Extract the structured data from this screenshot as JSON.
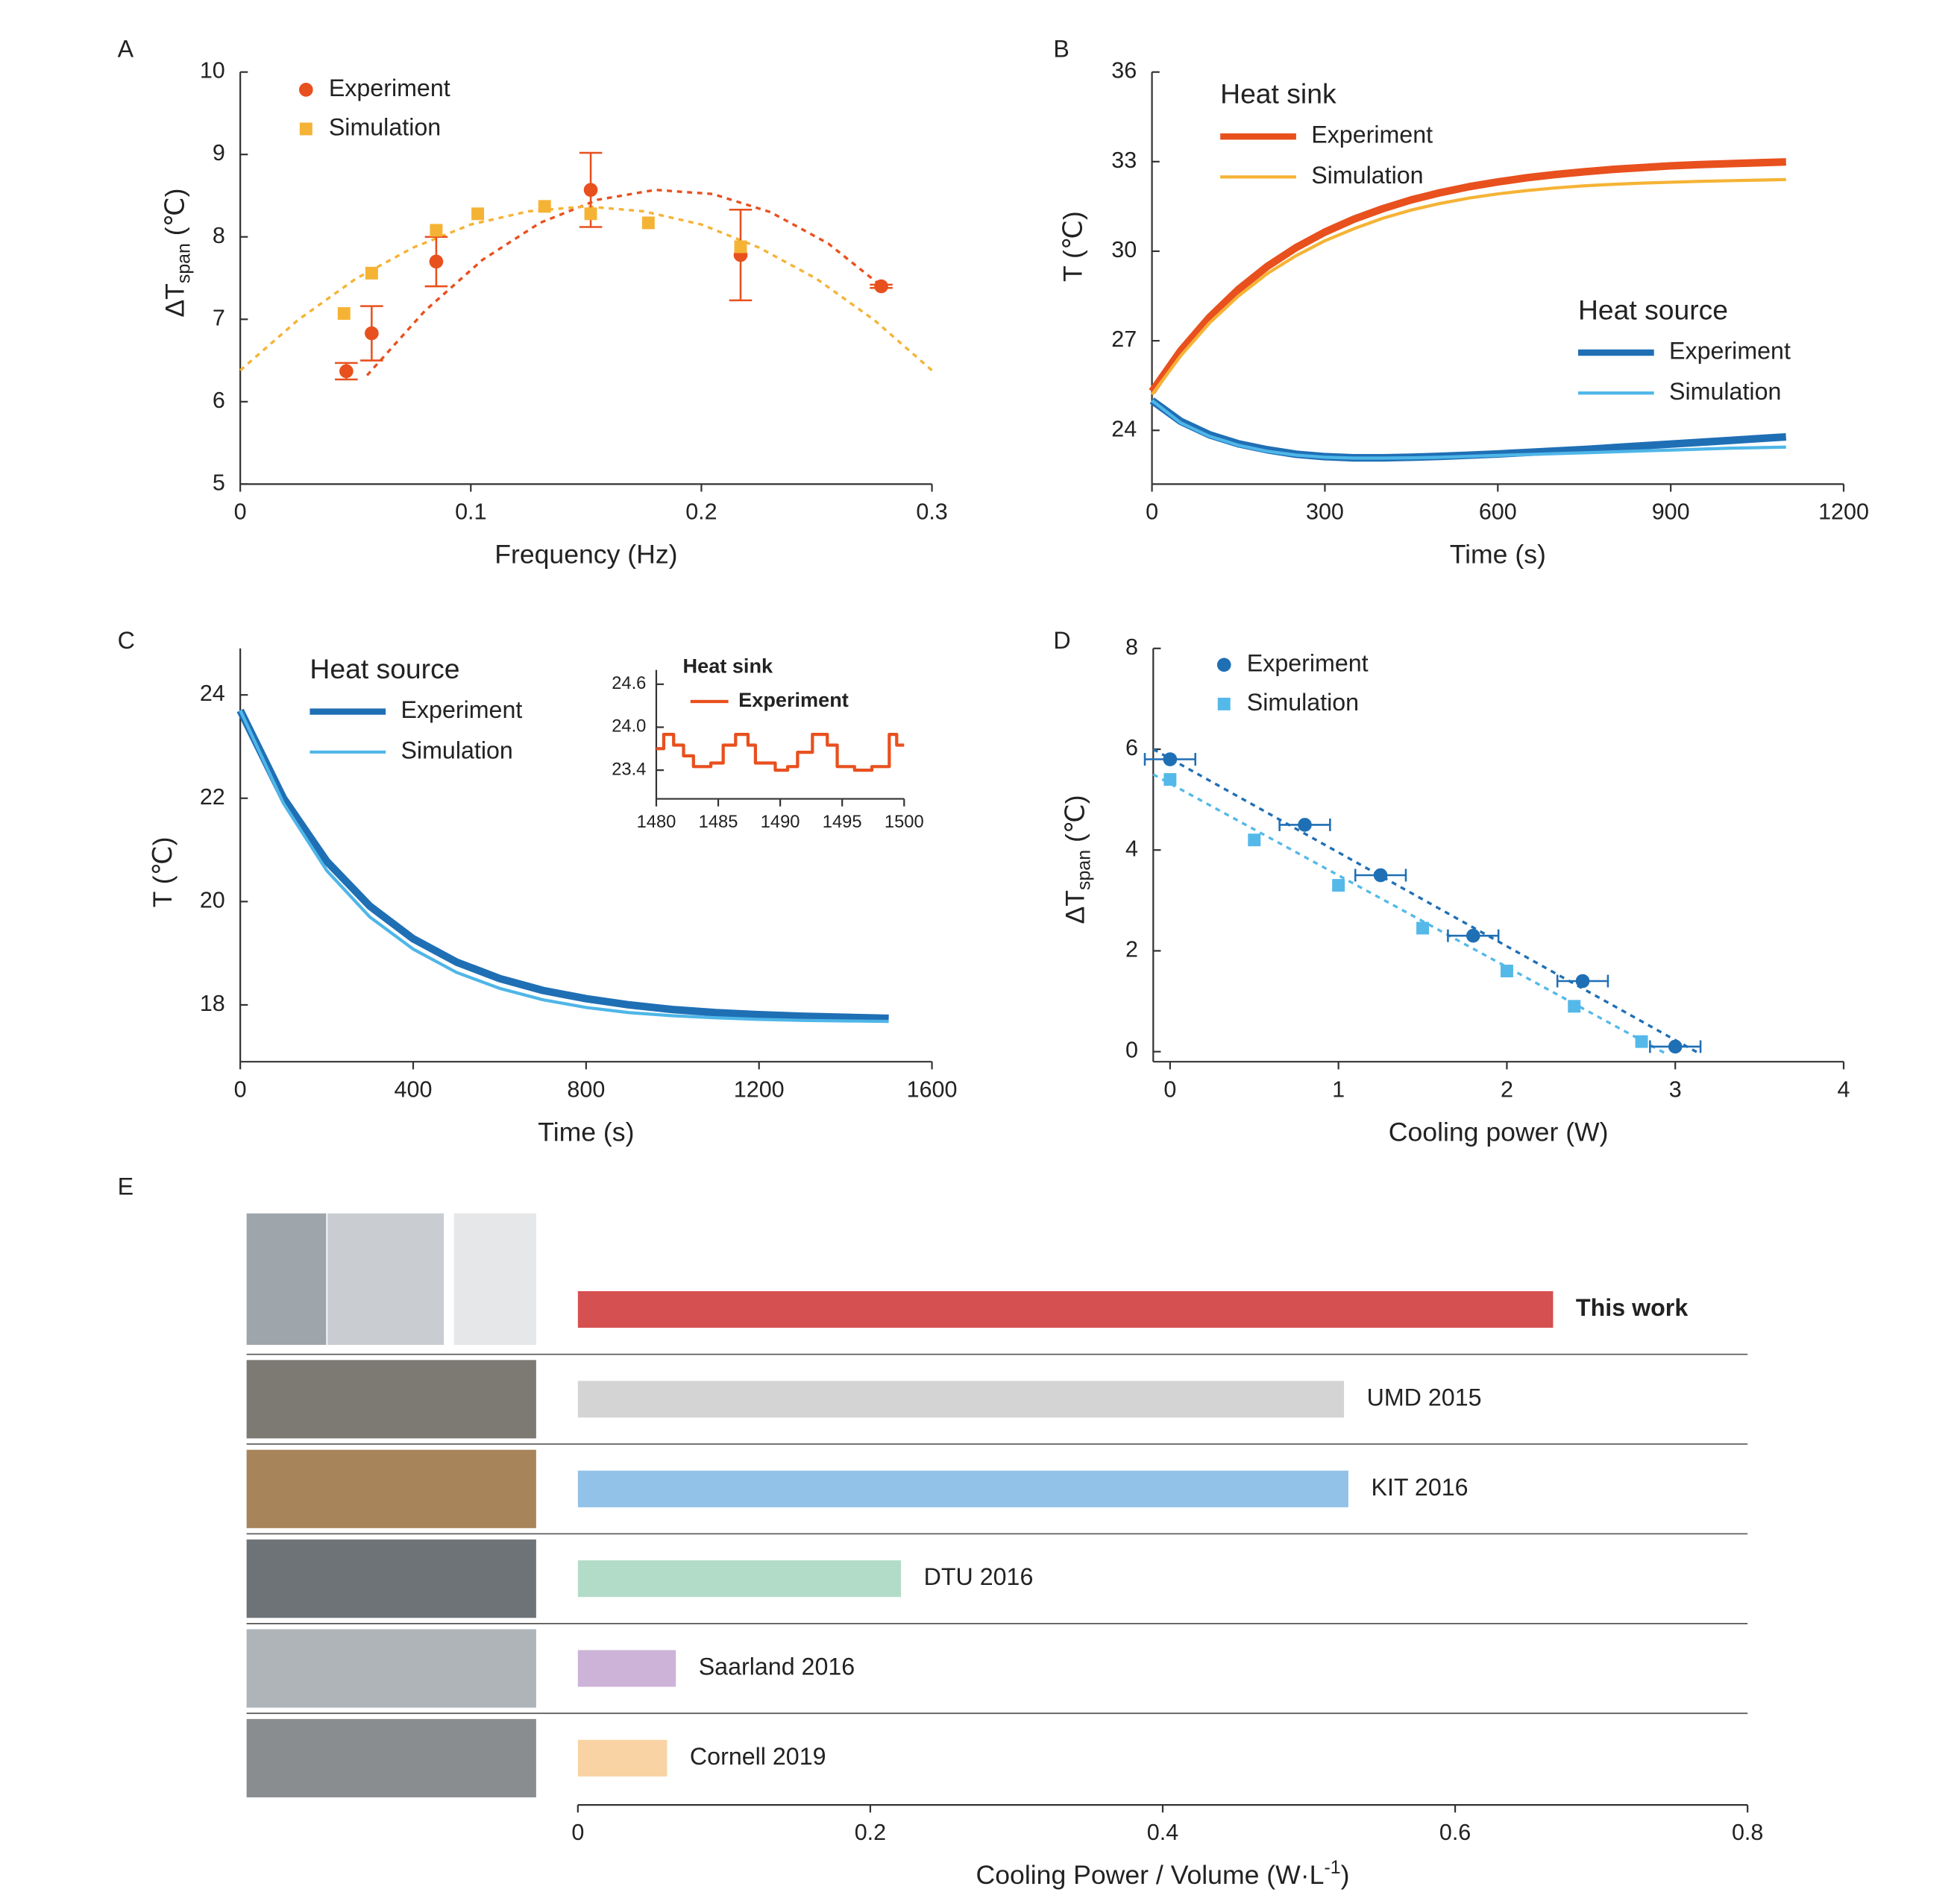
{
  "chart_data": [
    {
      "type": "scatter",
      "panel": "A",
      "xlabel": "Frequency (Hz)",
      "ylabel": [
        "ΔT",
        "span",
        " (℃)"
      ],
      "xlim": [
        0,
        0.3
      ],
      "xticks": [
        0,
        0.1,
        0.2,
        0.3
      ],
      "ylim": [
        5,
        10
      ],
      "yticks": [
        5,
        6,
        7,
        8,
        9,
        10
      ],
      "series": [
        {
          "name": "Experiment",
          "color": "#e8501e",
          "marker": "circle",
          "x": [
            0.046,
            0.057,
            0.085,
            0.152,
            0.217,
            0.278
          ],
          "values": [
            6.37,
            6.83,
            7.7,
            8.57,
            7.78,
            7.4
          ],
          "errors": [
            0.1,
            0.33,
            0.3,
            0.45,
            0.55,
            0.02
          ]
        },
        {
          "name": "Simulation",
          "color": "#f5b335",
          "marker": "square",
          "x": [
            0.045,
            0.057,
            0.085,
            0.103,
            0.132,
            0.152,
            0.177,
            0.217
          ],
          "values": [
            7.07,
            7.56,
            8.08,
            8.28,
            8.37,
            8.28,
            8.17,
            7.88
          ]
        }
      ],
      "fits": [
        {
          "color": "#e8501e",
          "x": [
            0.055,
            0.08,
            0.105,
            0.13,
            0.155,
            0.18,
            0.205,
            0.23,
            0.255,
            0.28
          ],
          "values": [
            6.32,
            7.1,
            7.72,
            8.17,
            8.45,
            8.57,
            8.52,
            8.3,
            7.92,
            7.36
          ]
        },
        {
          "color": "#f5b335",
          "x": [
            0,
            0.025,
            0.05,
            0.075,
            0.1,
            0.125,
            0.15,
            0.175,
            0.2,
            0.225,
            0.25,
            0.275,
            0.3
          ],
          "values": [
            6.38,
            6.99,
            7.49,
            7.87,
            8.15,
            8.31,
            8.37,
            8.31,
            8.15,
            7.87,
            7.49,
            6.99,
            6.38
          ]
        }
      ]
    },
    {
      "type": "line",
      "panel": "B",
      "xlabel": "Time (s)",
      "ylabel": "T (℃)",
      "xlim": [
        0,
        1200
      ],
      "xticks": [
        0,
        300,
        600,
        900,
        1200
      ],
      "ylim": [
        22.2,
        36
      ],
      "yticks": [
        24,
        27,
        30,
        33,
        36
      ],
      "x": [
        0,
        50,
        100,
        150,
        200,
        250,
        300,
        350,
        400,
        450,
        500,
        550,
        600,
        650,
        700,
        750,
        800,
        850,
        900,
        950,
        1000,
        1050,
        1100
      ],
      "groups": [
        {
          "name": "Heat sink",
          "series": [
            {
              "name": "Experiment",
              "color": "#e8501e",
              "width": 6,
              "values": [
                25.3,
                26.67,
                27.79,
                28.72,
                29.49,
                30.12,
                30.64,
                31.07,
                31.42,
                31.72,
                31.96,
                32.16,
                32.32,
                32.46,
                32.57,
                32.66,
                32.74,
                32.8,
                32.86,
                32.9,
                32.93,
                32.96,
                32.99
              ]
            },
            {
              "name": "Simulation",
              "color": "#f5b335",
              "width": 2.5,
              "values": [
                25.2,
                26.5,
                27.6,
                28.5,
                29.25,
                29.85,
                30.35,
                30.75,
                31.1,
                31.38,
                31.6,
                31.78,
                31.92,
                32.03,
                32.12,
                32.19,
                32.24,
                32.28,
                32.31,
                32.34,
                32.36,
                32.38,
                32.4
              ]
            }
          ]
        },
        {
          "name": "Heat source",
          "series": [
            {
              "name": "Experiment",
              "color": "#1f6fb5",
              "width": 6,
              "values": [
                25.0,
                24.3,
                23.85,
                23.55,
                23.35,
                23.2,
                23.12,
                23.08,
                23.08,
                23.1,
                23.13,
                23.17,
                23.21,
                23.26,
                23.31,
                23.36,
                23.42,
                23.48,
                23.54,
                23.6,
                23.66,
                23.72,
                23.78
              ]
            },
            {
              "name": "Simulation",
              "color": "#4fb6e8",
              "width": 2.5,
              "values": [
                25.0,
                24.25,
                23.8,
                23.5,
                23.3,
                23.17,
                23.1,
                23.07,
                23.07,
                23.08,
                23.1,
                23.13,
                23.16,
                23.19,
                23.22,
                23.25,
                23.28,
                23.31,
                23.34,
                23.37,
                23.4,
                23.42,
                23.44
              ]
            }
          ]
        }
      ]
    },
    {
      "type": "line",
      "panel": "C",
      "xlabel": "Time (s)",
      "ylabel": "T (℃)",
      "xlim": [
        0,
        1600
      ],
      "xticks": [
        0,
        400,
        800,
        1200,
        1600
      ],
      "ylim": [
        16.9,
        24.9
      ],
      "yticks": [
        18,
        20,
        22,
        24
      ],
      "x": [
        0,
        100,
        200,
        300,
        400,
        500,
        600,
        700,
        800,
        900,
        1000,
        1100,
        1200,
        1300,
        1400,
        1500
      ],
      "groups": [
        {
          "name": "Heat source",
          "series": [
            {
              "name": "Experiment",
              "color": "#1f6fb5",
              "width": 6,
              "values": [
                23.7,
                22.0,
                20.78,
                19.91,
                19.28,
                18.83,
                18.51,
                18.28,
                18.12,
                18.0,
                17.91,
                17.85,
                17.81,
                17.78,
                17.76,
                17.74
              ]
            },
            {
              "name": "Simulation",
              "color": "#4fb6e8",
              "width": 2.5,
              "values": [
                23.7,
                21.9,
                20.6,
                19.7,
                19.08,
                18.63,
                18.32,
                18.1,
                17.95,
                17.85,
                17.79,
                17.75,
                17.72,
                17.7,
                17.69,
                17.68
              ]
            }
          ]
        }
      ],
      "inset": {
        "type": "line",
        "xlim": [
          1480,
          1500
        ],
        "xticks": [
          1480,
          1485,
          1490,
          1495,
          1500
        ],
        "ylim": [
          23.0,
          24.8
        ],
        "yticks": [
          23.4,
          {
            "value": 24,
            "label": "24.0"
          },
          24.6
        ],
        "x": [
          1480,
          1480.6,
          1480.6,
          1481.4,
          1481.4,
          1482.2,
          1482.2,
          1483,
          1483,
          1484.4,
          1484.4,
          1485.4,
          1485.4,
          1486.4,
          1486.4,
          1487.4,
          1487.4,
          1488,
          1488,
          1489.6,
          1489.6,
          1490.6,
          1490.6,
          1491.4,
          1491.4,
          1492.6,
          1492.6,
          1493.8,
          1493.8,
          1494.6,
          1494.6,
          1496,
          1496,
          1497.4,
          1497.4,
          1498.8,
          1498.8,
          1499.4,
          1499.4,
          1500
        ],
        "groups": [
          {
            "name": "Heat sink",
            "series": [
              {
                "name": "Experiment",
                "color": "#e8501e",
                "width": 2.5,
                "values": [
                  23.7,
                  23.7,
                  23.9,
                  23.9,
                  23.75,
                  23.75,
                  23.6,
                  23.6,
                  23.45,
                  23.45,
                  23.5,
                  23.5,
                  23.75,
                  23.75,
                  23.9,
                  23.9,
                  23.75,
                  23.75,
                  23.5,
                  23.5,
                  23.4,
                  23.4,
                  23.45,
                  23.45,
                  23.65,
                  23.65,
                  23.9,
                  23.9,
                  23.75,
                  23.75,
                  23.45,
                  23.45,
                  23.4,
                  23.4,
                  23.45,
                  23.45,
                  23.9,
                  23.9,
                  23.75,
                  23.75
                ]
              }
            ]
          }
        ]
      }
    },
    {
      "type": "scatter",
      "panel": "D",
      "xlabel": "Cooling power (W)",
      "ylabel": [
        "ΔT",
        "span",
        " (℃)"
      ],
      "xlim": [
        -0.1,
        4
      ],
      "xticks": [
        0,
        1,
        2,
        3,
        4
      ],
      "ylim": [
        -0.2,
        8
      ],
      "yticks": [
        0,
        2,
        4,
        6,
        8
      ],
      "series": [
        {
          "name": "Experiment",
          "color": "#1f6fb5",
          "marker": "circle",
          "x": [
            0,
            0.8,
            1.25,
            1.8,
            2.45,
            3
          ],
          "values": [
            5.8,
            4.5,
            3.5,
            2.3,
            1.4,
            0.1
          ],
          "xerrors": [
            0.15,
            0.15,
            0.15,
            0.15,
            0.15,
            0.15
          ]
        },
        {
          "name": "Simulation",
          "color": "#54b9e8",
          "marker": "square",
          "x": [
            0,
            0.5,
            1,
            1.5,
            2,
            2.4,
            2.8
          ],
          "values": [
            5.4,
            4.2,
            3.3,
            2.45,
            1.6,
            0.9,
            0.2
          ]
        }
      ],
      "fits": [
        {
          "color": "#1f6fb5",
          "x": [
            -0.1,
            3.15
          ],
          "values": [
            6.0,
            -0.05
          ]
        },
        {
          "color": "#54b9e8",
          "x": [
            -0.1,
            2.95
          ],
          "values": [
            5.5,
            -0.05
          ]
        }
      ]
    },
    {
      "type": "hbar",
      "panel": "E",
      "xlabel": [
        "Cooling Power / Volume (W·L",
        "-1",
        ")"
      ],
      "xlim": [
        0,
        0.8
      ],
      "xticks": [
        0,
        0.2,
        0.4,
        0.6,
        0.8
      ],
      "categories": [
        "This work",
        "UMD 2015",
        "KIT 2016",
        "DTU 2016",
        "Saarland 2016",
        "Cornell 2019"
      ],
      "values": [
        0.667,
        0.524,
        0.527,
        0.221,
        0.067,
        0.061
      ],
      "colors": [
        "#d55050",
        "#d4d4d4",
        "#93c2e8",
        "#b3dcc8",
        "#cdb3d8",
        "#f9d3a3"
      ],
      "font_weights": [
        "bold",
        "normal",
        "normal",
        "normal",
        "normal",
        "normal"
      ]
    }
  ]
}
